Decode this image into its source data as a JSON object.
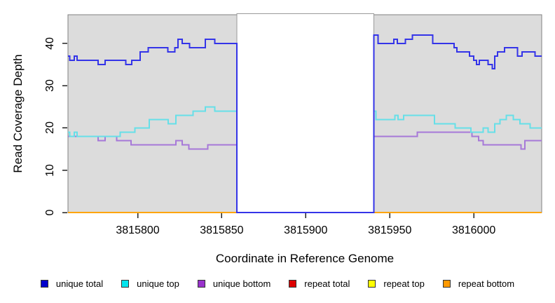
{
  "chart_data": {
    "type": "line",
    "subtype": "step-after-coverage-plot",
    "title": "",
    "xlabel": "Coordinate in Reference Genome",
    "ylabel": "Read Coverage Depth",
    "xlim": [
      3815758.5,
      3816040.4
    ],
    "ylim": [
      0,
      46.8
    ],
    "x_ticks": [
      3815800,
      3815850,
      3815900,
      3815950,
      3816000
    ],
    "y_ticks": [
      0,
      10,
      20,
      30,
      40
    ],
    "grid": "off",
    "panel_background": "#DCDCDC",
    "panel_border_color": "#808080",
    "gap_region": {
      "from": 3815859.0,
      "to": 3815940.5,
      "fill": "#FFFFFF",
      "border": "#9A9A9A",
      "note": "white rectangle where all coverage drops to 0"
    },
    "series": [
      {
        "name": "repeat total",
        "color": "#CC0000",
        "legend_color": "#DD0000",
        "points": [
          [
            3815758.5,
            0
          ],
          [
            3816040.4,
            0
          ]
        ]
      },
      {
        "name": "repeat top",
        "color": "#F5E900",
        "legend_color": "#FFFF00",
        "points": [
          [
            3815758.5,
            0
          ],
          [
            3816040.4,
            0
          ]
        ]
      },
      {
        "name": "repeat bottom",
        "color": "#FFA500",
        "legend_color": "#FF9900",
        "points": [
          [
            3815758.5,
            0
          ],
          [
            3816040.4,
            0
          ]
        ]
      },
      {
        "name": "unique bottom",
        "color": "#A678D8",
        "legend_color": "#9932CC",
        "points": [
          [
            3815758.5,
            18
          ],
          [
            3815776.4,
            17
          ],
          [
            3815780.6,
            18
          ],
          [
            3815787.5,
            17
          ],
          [
            3815796.0,
            16
          ],
          [
            3815822.7,
            17
          ],
          [
            3815826.5,
            16
          ],
          [
            3815830.5,
            15
          ],
          [
            3815841.7,
            16
          ],
          [
            3815859.0,
            0
          ],
          [
            3815940.5,
            18
          ],
          [
            3815966.3,
            19
          ],
          [
            3815998.9,
            18
          ],
          [
            3816002.8,
            17
          ],
          [
            3816005.5,
            16
          ],
          [
            3816028.1,
            15
          ],
          [
            3816030.4,
            17
          ],
          [
            3816040.4,
            17
          ]
        ]
      },
      {
        "name": "unique top",
        "color": "#66DFE8",
        "legend_color": "#00E5EE",
        "points": [
          [
            3815758.5,
            19
          ],
          [
            3815759.5,
            18
          ],
          [
            3815762.2,
            19
          ],
          [
            3815763.9,
            18
          ],
          [
            3815789.6,
            19
          ],
          [
            3815798.3,
            20
          ],
          [
            3815806.9,
            22
          ],
          [
            3815818.1,
            21
          ],
          [
            3815822.7,
            23
          ],
          [
            3815833.0,
            24
          ],
          [
            3815840.3,
            25
          ],
          [
            3815845.9,
            24
          ],
          [
            3815859.0,
            0
          ],
          [
            3815940.5,
            24
          ],
          [
            3815941.7,
            22
          ],
          [
            3815953.1,
            23
          ],
          [
            3815954.9,
            22
          ],
          [
            3815958.3,
            23
          ],
          [
            3815976.7,
            21
          ],
          [
            3815988.9,
            20
          ],
          [
            3815998.2,
            19
          ],
          [
            3816005.5,
            20
          ],
          [
            3816008.6,
            19
          ],
          [
            3816012.5,
            21
          ],
          [
            3816015.5,
            22
          ],
          [
            3816019.3,
            23
          ],
          [
            3816023.6,
            22
          ],
          [
            3816027.5,
            21
          ],
          [
            3816033.6,
            20
          ],
          [
            3816040.4,
            20
          ]
        ]
      },
      {
        "name": "unique total",
        "color": "#3434E8",
        "legend_color": "#0000CC",
        "points": [
          [
            3815758.5,
            37
          ],
          [
            3815759.5,
            36
          ],
          [
            3815762.2,
            37
          ],
          [
            3815763.9,
            36
          ],
          [
            3815776.4,
            35
          ],
          [
            3815780.6,
            36
          ],
          [
            3815793.0,
            35
          ],
          [
            3815796.5,
            36
          ],
          [
            3815801.4,
            38
          ],
          [
            3815806.3,
            39
          ],
          [
            3815818.0,
            38
          ],
          [
            3815822.0,
            39
          ],
          [
            3815824.0,
            41
          ],
          [
            3815826.5,
            40
          ],
          [
            3815830.8,
            39
          ],
          [
            3815840.3,
            41
          ],
          [
            3815845.9,
            40
          ],
          [
            3815859.0,
            0
          ],
          [
            3815940.5,
            42
          ],
          [
            3815943.1,
            40
          ],
          [
            3815952.4,
            41
          ],
          [
            3815954.4,
            40
          ],
          [
            3815959.3,
            41
          ],
          [
            3815963.5,
            42
          ],
          [
            3815975.5,
            40
          ],
          [
            3815988.2,
            39
          ],
          [
            3815989.9,
            38
          ],
          [
            3815997.5,
            37
          ],
          [
            3816000.0,
            36
          ],
          [
            3816001.7,
            35
          ],
          [
            3816003.3,
            36
          ],
          [
            3816008.6,
            35
          ],
          [
            3816011.1,
            34
          ],
          [
            3816012.5,
            37
          ],
          [
            3816014.2,
            38
          ],
          [
            3816018.3,
            39
          ],
          [
            3816026.0,
            37
          ],
          [
            3816028.8,
            38
          ],
          [
            3816036.4,
            37
          ],
          [
            3816040.4,
            37
          ]
        ]
      }
    ],
    "legend": {
      "position": "bottom-center",
      "entries": [
        {
          "label": "unique total",
          "color": "#0000CC"
        },
        {
          "label": "unique top",
          "color": "#00E5EE"
        },
        {
          "label": "unique bottom",
          "color": "#9932CC"
        },
        {
          "label": "repeat total",
          "color": "#DD0000"
        },
        {
          "label": "repeat top",
          "color": "#FFFF00"
        },
        {
          "label": "repeat bottom",
          "color": "#FF9900"
        }
      ]
    }
  }
}
